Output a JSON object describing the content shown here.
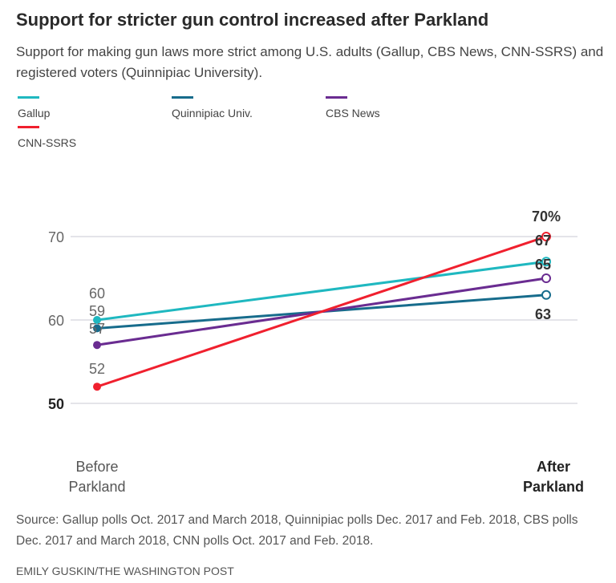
{
  "title": "Support for stricter gun control increased after Parkland",
  "subtitle": "Support for making gun laws more strict among U.S. adults (Gallup, CBS News, CNN-SSRS) and registered voters (Quinnipiac University).",
  "source": "Source: Gallup polls Oct. 2017 and March 2018, Quinnipiac polls Dec. 2017 and Feb. 2018, CBS polls Dec. 2017 and March 2018, CNN polls Oct. 2017 and Feb. 2018.",
  "credit": "EMILY GUSKIN/THE WASHINGTON POST",
  "chart_data": {
    "type": "line",
    "categories": [
      "Before Parkland",
      "After Parkland"
    ],
    "ylim": [
      50,
      70
    ],
    "yticks": [
      "50",
      "60",
      "70"
    ],
    "grid": true,
    "legend_placement": "top-left",
    "series": [
      {
        "name": "Gallup",
        "color": "#1fb8c0",
        "values": [
          60,
          67
        ],
        "labels": [
          "60",
          "67"
        ]
      },
      {
        "name": "Quinnipiac Univ.",
        "color": "#176c8c",
        "values": [
          59,
          63
        ],
        "labels": [
          "59",
          "63"
        ]
      },
      {
        "name": "CBS News",
        "color": "#6a2c91",
        "values": [
          57,
          65
        ],
        "labels": [
          "57",
          "65"
        ]
      },
      {
        "name": "CNN-SSRS",
        "color": "#f0202e",
        "values": [
          52,
          70
        ],
        "labels": [
          "52",
          "70%"
        ]
      }
    ]
  }
}
